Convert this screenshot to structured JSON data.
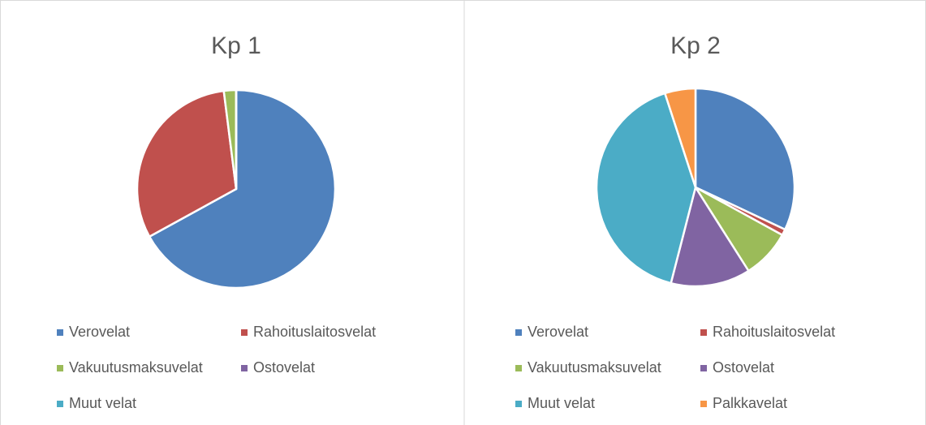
{
  "chart_data": [
    {
      "type": "pie",
      "title": "Kp 1",
      "categories": [
        "Verovelat",
        "Rahoituslaitosvelat",
        "Vakuutusmaksuvelat",
        "Ostovelat",
        "Muut velat"
      ],
      "values": [
        67,
        31,
        2,
        0,
        0
      ],
      "colors": [
        "#4f81bd",
        "#c0504d",
        "#9bbb59",
        "#8064a2",
        "#4bacc6"
      ],
      "legend": "bottom"
    },
    {
      "type": "pie",
      "title": "Kp 2",
      "categories": [
        "Verovelat",
        "Rahoituslaitosvelat",
        "Vakuutusmaksuvelat",
        "Ostovelat",
        "Muut velat",
        "Palkkavelat"
      ],
      "values": [
        32,
        1,
        8,
        13,
        41,
        5
      ],
      "colors": [
        "#4f81bd",
        "#c0504d",
        "#9bbb59",
        "#8064a2",
        "#4bacc6",
        "#f79646"
      ],
      "legend": "bottom"
    }
  ]
}
